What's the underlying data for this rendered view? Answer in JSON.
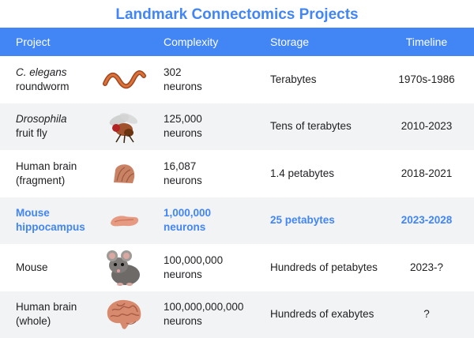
{
  "title": "Landmark Connectomics Projects",
  "header": {
    "project": "Project",
    "complexity": "Complexity",
    "storage": "Storage",
    "timeline": "Timeline"
  },
  "rows": [
    {
      "project_line1": "C. elegans",
      "project_line2": "roundworm",
      "icon": "roundworm-icon",
      "complexity_line1": "302",
      "complexity_line2": "neurons",
      "storage": "Terabytes",
      "timeline": "1970s-1986"
    },
    {
      "project_line1": "Drosophila",
      "project_line2": "fruit fly",
      "icon": "fruit-fly-icon",
      "complexity_line1": "125,000",
      "complexity_line2": "neurons",
      "storage": "Tens of terabytes",
      "timeline": "2010-2023"
    },
    {
      "project_line1": "Human brain",
      "project_line2": "(fragment)",
      "icon": "brain-fragment-icon",
      "complexity_line1": "16,087",
      "complexity_line2": "neurons",
      "storage": "1.4 petabytes",
      "timeline": "2018-2021"
    },
    {
      "project_line1": "Mouse",
      "project_line2": "hippocampus",
      "icon": "hippocampus-icon",
      "complexity_line1": "1,000,000",
      "complexity_line2": "neurons",
      "storage": "25 petabytes",
      "timeline": "2023-2028"
    },
    {
      "project_line1": "Mouse",
      "project_line2": "",
      "icon": "mouse-icon",
      "complexity_line1": "100,000,000",
      "complexity_line2": "neurons",
      "storage": "Hundreds of petabytes",
      "timeline": "2023-?"
    },
    {
      "project_line1": "Human brain",
      "project_line2": "(whole)",
      "icon": "human-brain-icon",
      "complexity_line1": "100,000,000,000",
      "complexity_line2": "neurons",
      "storage": "Hundreds of exabytes",
      "timeline": "?"
    }
  ],
  "colors": {
    "accent": "#4285f4",
    "row_alt": "#f1f3f4"
  }
}
